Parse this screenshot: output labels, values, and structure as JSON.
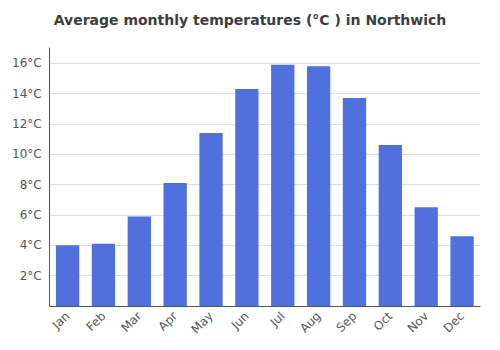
{
  "chart_data": {
    "type": "bar",
    "title": "Average monthly temperatures (°C ) in Northwich",
    "categories": [
      "Jan",
      "Feb",
      "Mar",
      "Apr",
      "May",
      "Jun",
      "Jul",
      "Aug",
      "Sep",
      "Oct",
      "Nov",
      "Dec"
    ],
    "values": [
      4.0,
      4.1,
      5.9,
      8.1,
      11.4,
      14.3,
      15.9,
      15.8,
      13.7,
      10.6,
      6.5,
      4.6
    ],
    "ylim": [
      0,
      17
    ],
    "yticks": [
      {
        "value": 2,
        "label": "2°C"
      },
      {
        "value": 4,
        "label": "4°C"
      },
      {
        "value": 6,
        "label": "6°C"
      },
      {
        "value": 8,
        "label": "8°C"
      },
      {
        "value": 10,
        "label": "10°C"
      },
      {
        "value": 12,
        "label": "12°C"
      },
      {
        "value": 14,
        "label": "14°C"
      },
      {
        "value": 16,
        "label": "16°C"
      }
    ],
    "grid": true
  }
}
